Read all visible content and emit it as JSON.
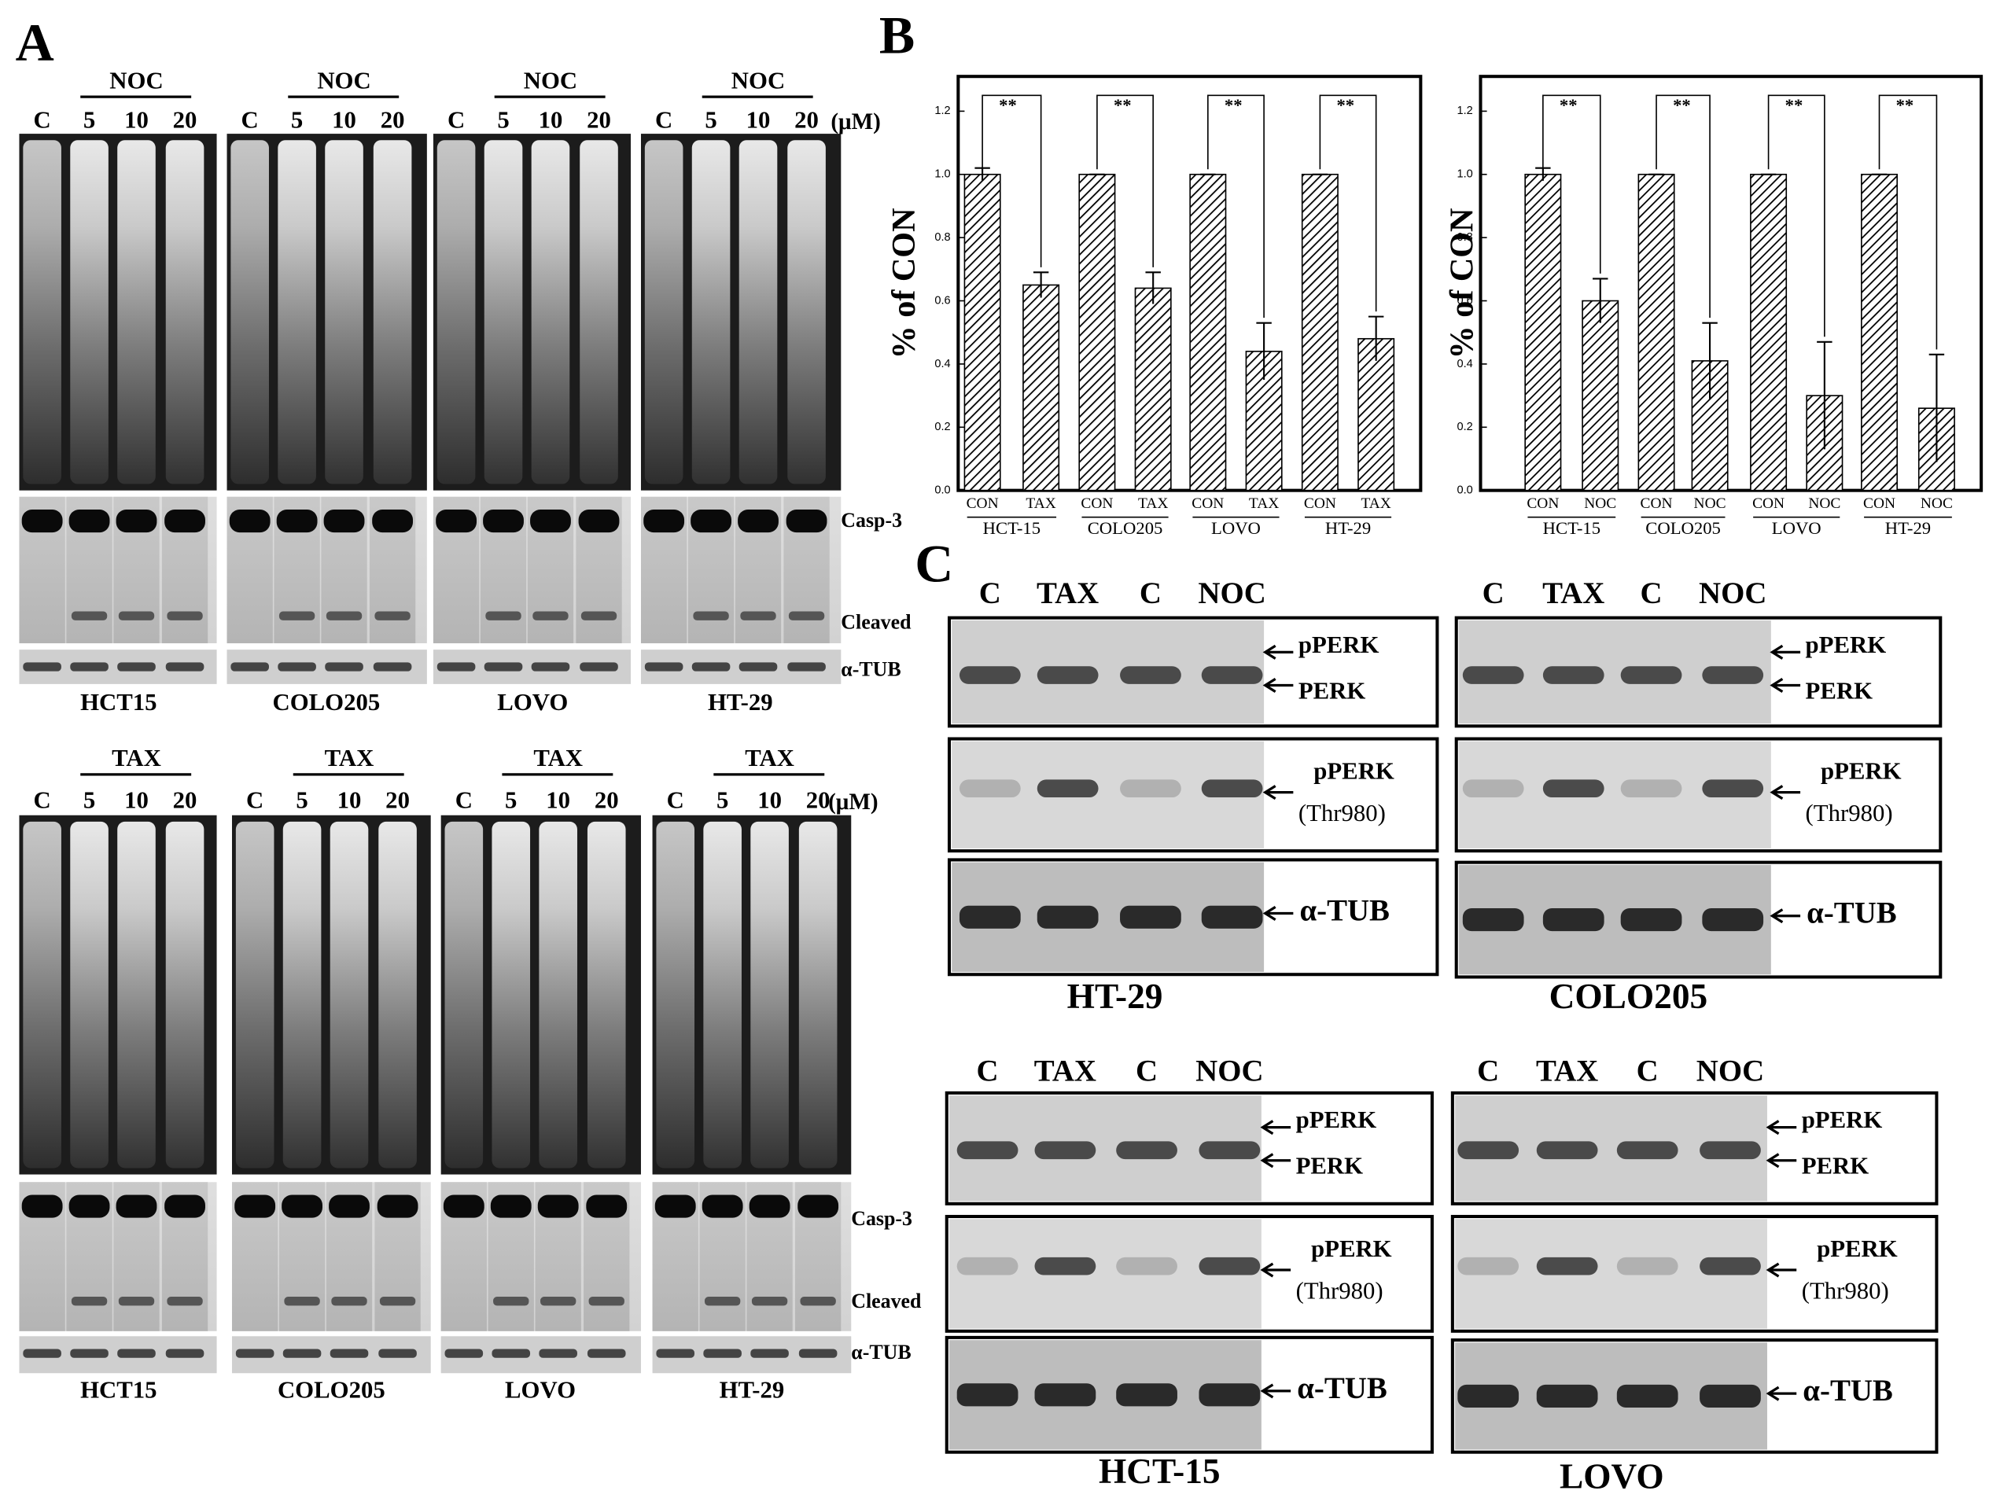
{
  "panel_labels": [
    "A",
    "B",
    "C"
  ],
  "panel_a": {
    "rows": [
      {
        "treatment": "NOC",
        "lanes": [
          "C",
          "5",
          "10",
          "20"
        ],
        "unit": "(μM)",
        "cells": [
          "HCT15",
          "COLO205",
          "LOVO",
          "HT-29"
        ],
        "markers": [
          "Casp-3",
          "Cleaved",
          "α-TUB"
        ]
      },
      {
        "treatment": "TAX",
        "lanes": [
          "C",
          "5",
          "10",
          "20"
        ],
        "unit": "(μM)",
        "cells": [
          "HCT15",
          "COLO205",
          "LOVO",
          "HT-29"
        ],
        "markers": [
          "Casp-3",
          "Cleaved",
          "α-TUB"
        ]
      }
    ]
  },
  "chart_data": [
    {
      "type": "bar",
      "y_label": "% of CON",
      "categories": [
        "CON",
        "TAX",
        "CON",
        "TAX",
        "CON",
        "TAX",
        "CON",
        "TAX"
      ],
      "groups": [
        "HCT-15",
        "COLO205",
        "LOVO",
        "HT-29"
      ],
      "values": [
        1.0,
        0.65,
        1.0,
        0.64,
        1.0,
        0.44,
        1.0,
        0.48
      ],
      "errors": [
        0.02,
        0.04,
        0,
        0.05,
        0,
        0.09,
        0,
        0.07
      ],
      "annotations": [
        "**",
        "**",
        "**",
        "**"
      ],
      "ylim": [
        0,
        1.31
      ],
      "yticks": [
        {
          "value": 0,
          "label": "0.0"
        },
        {
          "value": 0.2,
          "label": "0.2"
        },
        {
          "value": 0.4,
          "label": "0.4"
        },
        {
          "value": 0.6,
          "label": "0.6"
        },
        {
          "value": 0.8,
          "label": "0.8"
        },
        {
          "value": 1.0,
          "label": "1.0"
        },
        {
          "value": 1.2,
          "label": "1.2"
        }
      ]
    },
    {
      "type": "bar",
      "y_label": "% of CON",
      "categories": [
        "CON",
        "NOC",
        "CON",
        "NOC",
        "CON",
        "NOC",
        "CON",
        "NOC"
      ],
      "groups": [
        "HCT-15",
        "COLO205",
        "LOVO",
        "HT-29"
      ],
      "values": [
        1.0,
        0.6,
        1.0,
        0.41,
        1.0,
        0.3,
        1.0,
        0.26
      ],
      "errors": [
        0.02,
        0.07,
        0,
        0.12,
        0,
        0.17,
        0,
        0.17
      ],
      "annotations": [
        "**",
        "**",
        "**",
        "**"
      ],
      "ylim": [
        0,
        1.31
      ],
      "yticks": [
        {
          "value": 0,
          "label": "0.0"
        },
        {
          "value": 0.2,
          "label": "0.2"
        },
        {
          "value": 0.4,
          "label": "0.4"
        },
        {
          "value": 0.6,
          "label": "0.6"
        },
        {
          "value": 0.8,
          "label": "0.8"
        },
        {
          "value": 1.0,
          "label": "1.0"
        },
        {
          "value": 1.2,
          "label": "1.2"
        }
      ]
    }
  ],
  "panel_c": {
    "lanes": [
      "C",
      "TAX",
      "C",
      "NOC"
    ],
    "labels": [
      "pPERK",
      "PERK",
      "pPERK",
      "(Thr980)",
      "α-TUB"
    ],
    "cells": [
      "HT-29",
      "COLO205",
      "HCT-15",
      "LOVO"
    ]
  }
}
